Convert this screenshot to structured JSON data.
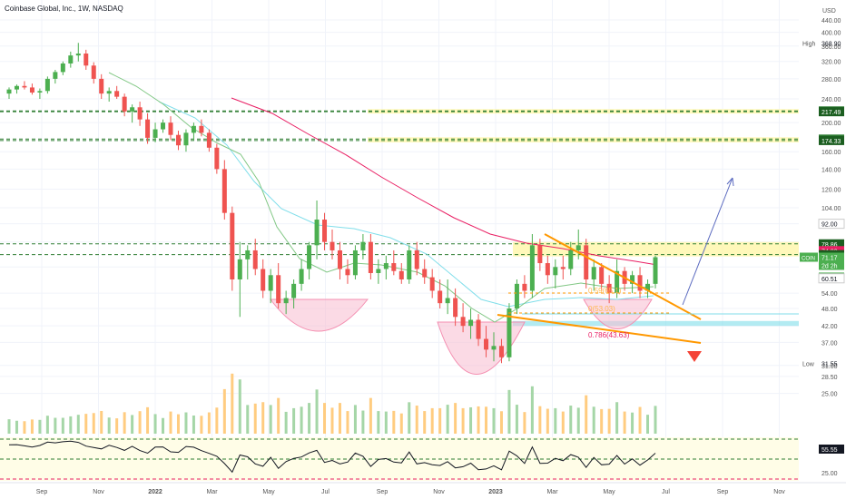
{
  "header": {
    "symbol_line": "Coinbase Global, Inc., 1W, NASDAQ",
    "currency": "USD"
  },
  "price_axis": {
    "ticks": [
      "440.00",
      "400.00",
      "360.00",
      "320.00",
      "280.00",
      "240.00",
      "200.00",
      "160.00",
      "140.00",
      "120.00",
      "104.00",
      "92.00",
      "80.00",
      "66.00",
      "54.00",
      "48.00",
      "42.00",
      "37.00",
      "31.00",
      "28.50",
      "25.00"
    ],
    "high_label": "High",
    "high_value": "368.90",
    "low_label": "Low",
    "low_value": "31.55",
    "badges": [
      {
        "value": "218.82",
        "color": "#2e7d32"
      },
      {
        "value": "217.49",
        "color": "#1b5e20"
      },
      {
        "value": "176.26",
        "color": "#2e7d32"
      },
      {
        "value": "174.33",
        "color": "#1b5e20"
      },
      {
        "value": "92.00",
        "color": "#ffffff"
      },
      {
        "value": "78.86",
        "color": "#1b5e20"
      },
      {
        "value": "74.83",
        "color": "#e91e63"
      },
      {
        "value": "72.61",
        "color": "#1b5e20"
      },
      {
        "value": "61.08",
        "color": "#4caf50"
      },
      {
        "value": "60.51",
        "color": "#ffffff"
      }
    ],
    "coin_label": "COIN",
    "coin_price": "71.17",
    "coin_countdown": "2d 2h"
  },
  "time_axis": [
    "Sep",
    "Nov",
    "2022",
    "Mar",
    "May",
    "Jul",
    "Sep",
    "Nov",
    "2023",
    "Mar",
    "May",
    "Jul",
    "Sep",
    "Nov"
  ],
  "indicator_axis": {
    "value": "55.55",
    "level": "25.00"
  },
  "annotations": {
    "fib_786": "0.786(43.63)",
    "fib_59": "0.59(65.1)",
    "fib_0": "0(53.03)"
  },
  "colors": {
    "up": "#26a69a",
    "down": "#ef5350",
    "up_light": "#4caf50",
    "down_light": "#f48fb1",
    "ema_fast": "#81c784",
    "ema_mid": "#80deea",
    "ema_slow": "#e91e63",
    "trend_orange": "#ff9800",
    "zone_yellow": "#fff59d",
    "zone_cyan": "#80deea"
  },
  "chart_data": {
    "type": "candlestick",
    "title": "Coinbase Global, Inc., 1W, NASDAQ",
    "y_scale": "log",
    "ylim": [
      22,
      440
    ],
    "resistance_zones": [
      [
        217.49,
        218.82
      ],
      [
        174.33,
        176.26
      ],
      [
        72.61,
        78.86
      ]
    ],
    "support_zone": [
      42.0,
      43.6
    ],
    "candles": [
      [
        250,
        262,
        240,
        258
      ],
      [
        258,
        268,
        250,
        265
      ],
      [
        265,
        275,
        258,
        262
      ],
      [
        262,
        270,
        248,
        252
      ],
      [
        252,
        260,
        240,
        255
      ],
      [
        255,
        285,
        250,
        280
      ],
      [
        280,
        300,
        270,
        295
      ],
      [
        295,
        320,
        288,
        315
      ],
      [
        315,
        345,
        305,
        335
      ],
      [
        335,
        369,
        320,
        340
      ],
      [
        340,
        350,
        300,
        310
      ],
      [
        310,
        318,
        270,
        280
      ],
      [
        280,
        290,
        240,
        250
      ],
      [
        250,
        262,
        235,
        255
      ],
      [
        255,
        265,
        240,
        244
      ],
      [
        244,
        250,
        210,
        218
      ],
      [
        218,
        230,
        200,
        225
      ],
      [
        225,
        235,
        195,
        205
      ],
      [
        205,
        215,
        170,
        178
      ],
      [
        178,
        200,
        172,
        190
      ],
      [
        190,
        205,
        185,
        200
      ],
      [
        200,
        210,
        175,
        182
      ],
      [
        182,
        188,
        162,
        168
      ],
      [
        168,
        190,
        160,
        185
      ],
      [
        185,
        200,
        175,
        195
      ],
      [
        195,
        205,
        180,
        185
      ],
      [
        185,
        190,
        160,
        165
      ],
      [
        165,
        170,
        135,
        140
      ],
      [
        140,
        150,
        95,
        100
      ],
      [
        100,
        105,
        55,
        60
      ],
      [
        60,
        80,
        45,
        70
      ],
      [
        70,
        78,
        60,
        75
      ],
      [
        75,
        82,
        62,
        65
      ],
      [
        65,
        70,
        52,
        55
      ],
      [
        55,
        65,
        50,
        62
      ],
      [
        62,
        68,
        48,
        50
      ],
      [
        50,
        55,
        46,
        52
      ],
      [
        52,
        60,
        48,
        58
      ],
      [
        58,
        70,
        55,
        65
      ],
      [
        65,
        80,
        60,
        78
      ],
      [
        78,
        110,
        70,
        95
      ],
      [
        95,
        100,
        75,
        80
      ],
      [
        80,
        88,
        70,
        75
      ],
      [
        75,
        80,
        60,
        65
      ],
      [
        65,
        70,
        58,
        62
      ],
      [
        62,
        78,
        60,
        75
      ],
      [
        75,
        85,
        70,
        80
      ],
      [
        80,
        85,
        60,
        63
      ],
      [
        63,
        70,
        58,
        65
      ],
      [
        65,
        72,
        60,
        68
      ],
      [
        68,
        75,
        62,
        64
      ],
      [
        64,
        68,
        58,
        60
      ],
      [
        60,
        78,
        58,
        75
      ],
      [
        75,
        80,
        62,
        65
      ],
      [
        65,
        70,
        58,
        61
      ],
      [
        61,
        65,
        52,
        55
      ],
      [
        55,
        60,
        48,
        50
      ],
      [
        50,
        60,
        46,
        52
      ],
      [
        52,
        56,
        42,
        45
      ],
      [
        45,
        50,
        40,
        42
      ],
      [
        42,
        48,
        38,
        44
      ],
      [
        44,
        46,
        36,
        38
      ],
      [
        38,
        42,
        33,
        35
      ],
      [
        35,
        40,
        32,
        36
      ],
      [
        36,
        38,
        31.55,
        33
      ],
      [
        33,
        50,
        32,
        48
      ],
      [
        48,
        60,
        46,
        58
      ],
      [
        58,
        62,
        52,
        55
      ],
      [
        55,
        85,
        52,
        78
      ],
      [
        78,
        82,
        64,
        68
      ],
      [
        68,
        72,
        58,
        62
      ],
      [
        62,
        70,
        56,
        66
      ],
      [
        66,
        72,
        60,
        65
      ],
      [
        65,
        80,
        62,
        75
      ],
      [
        75,
        88,
        70,
        78
      ],
      [
        78,
        82,
        56,
        60
      ],
      [
        60,
        70,
        55,
        66
      ],
      [
        66,
        68,
        55,
        58
      ],
      [
        58,
        62,
        50,
        54
      ],
      [
        54,
        70,
        52,
        64
      ],
      [
        64,
        66,
        55,
        58
      ],
      [
        58,
        64,
        54,
        62
      ],
      [
        62,
        66,
        52,
        55
      ],
      [
        55,
        60,
        52,
        58
      ],
      [
        58,
        72,
        56,
        71.17
      ]
    ],
    "x_labels": [
      "Sep",
      "Nov",
      "2022",
      "Mar",
      "May",
      "Jul",
      "Sep",
      "Nov",
      "2023",
      "Mar",
      "May",
      "Jul",
      "Sep",
      "Nov"
    ],
    "projection": {
      "from": 54,
      "to": 140,
      "direction": "up",
      "alt_direction": "down"
    },
    "indicator": {
      "name": "",
      "last": 55.55,
      "levels": [
        70,
        50,
        30
      ]
    }
  }
}
